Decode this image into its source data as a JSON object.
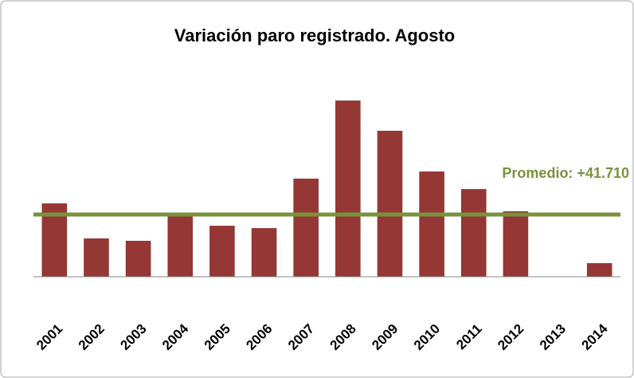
{
  "chart_data": {
    "type": "bar",
    "title": "Variación paro registrado. Agosto",
    "categories": [
      "2001",
      "2002",
      "2003",
      "2004",
      "2005",
      "2006",
      "2007",
      "2008",
      "2009",
      "2010",
      "2011",
      "2012",
      "2013",
      "2014"
    ],
    "values": [
      49200,
      25700,
      24100,
      41700,
      34200,
      32600,
      65800,
      118200,
      97900,
      70600,
      58800,
      43900,
      0,
      9100
    ],
    "color": "#953735",
    "ylim": [
      0,
      130000
    ],
    "average": {
      "value": 41710,
      "label": "Promedio: +41.710",
      "color": "#77933c"
    }
  }
}
